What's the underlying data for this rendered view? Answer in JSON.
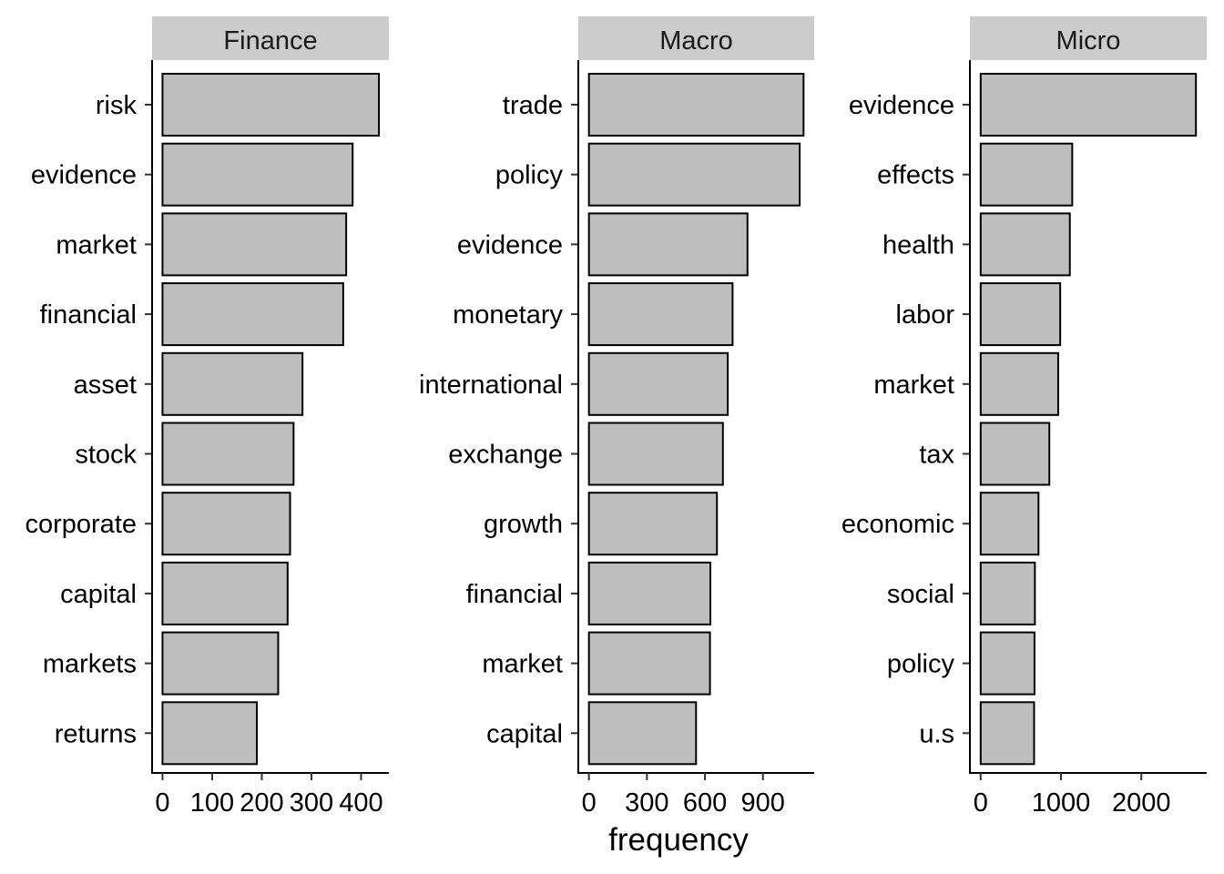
{
  "chart_data": [
    {
      "type": "bar",
      "orientation": "horizontal",
      "panel": "Finance",
      "categories": [
        "risk",
        "evidence",
        "market",
        "financial",
        "asset",
        "stock",
        "corporate",
        "capital",
        "markets",
        "returns"
      ],
      "values": [
        436,
        383,
        370,
        364,
        282,
        264,
        257,
        252,
        233,
        190
      ],
      "xticks": [
        0,
        100,
        200,
        300,
        400
      ],
      "xlim": [
        -21,
        456
      ]
    },
    {
      "type": "bar",
      "orientation": "horizontal",
      "panel": "Macro",
      "categories": [
        "trade",
        "policy",
        "evidence",
        "monetary",
        "international",
        "exchange",
        "growth",
        "financial",
        "market",
        "capital"
      ],
      "values": [
        1110,
        1090,
        820,
        743,
        718,
        693,
        662,
        628,
        626,
        554
      ],
      "xticks": [
        0,
        300,
        600,
        900
      ],
      "xlim": [
        -55,
        1165
      ]
    },
    {
      "type": "bar",
      "orientation": "horizontal",
      "panel": "Micro",
      "categories": [
        "evidence",
        "effects",
        "health",
        "labor",
        "market",
        "tax",
        "economic",
        "social",
        "policy",
        "u.s"
      ],
      "values": [
        2680,
        1140,
        1110,
        990,
        965,
        855,
        720,
        675,
        670,
        665
      ],
      "xticks": [
        0,
        1000,
        2000
      ],
      "xlim": [
        -134,
        2814
      ]
    }
  ],
  "xlabel": "frequency",
  "colors": {
    "bar_fill": "#bebebe",
    "bar_stroke": "#000000",
    "strip_fill": "#cccccc"
  }
}
